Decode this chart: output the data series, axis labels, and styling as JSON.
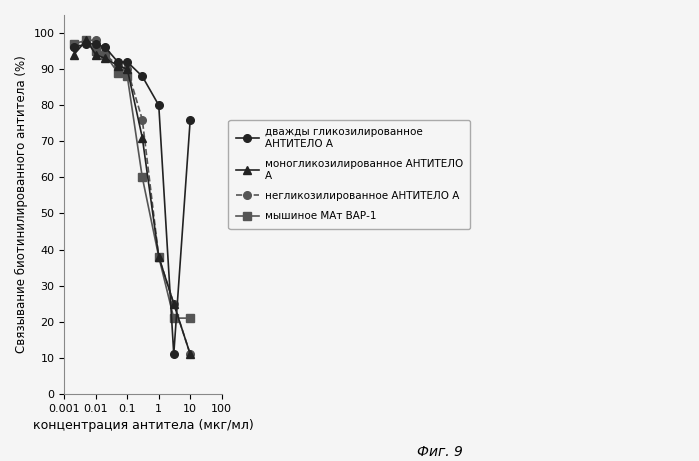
{
  "series": [
    {
      "label": "дважды гликозилированное\nАНТИТЕЛО А",
      "x": [
        0.002,
        0.005,
        0.01,
        0.02,
        0.05,
        0.1,
        0.3,
        1.0,
        3.0,
        10.0
      ],
      "y": [
        96,
        97,
        97,
        96,
        92,
        92,
        88,
        80,
        11,
        76
      ],
      "marker": "o",
      "linestyle": "-",
      "color": "#222222",
      "markersize": 5.5,
      "linewidth": 1.2,
      "zorder": 4
    },
    {
      "label": "моногликозилированное АНТИТЕЛО\nА",
      "x": [
        0.002,
        0.005,
        0.01,
        0.02,
        0.05,
        0.1,
        0.3,
        1.0,
        3.0,
        10.0
      ],
      "y": [
        94,
        98,
        94,
        93,
        91,
        90,
        71,
        38,
        25,
        11
      ],
      "marker": "^",
      "linestyle": "-",
      "color": "#222222",
      "markersize": 5.5,
      "linewidth": 1.2,
      "zorder": 3
    },
    {
      "label": "негликозилированное АНТИТЕЛО А",
      "x": [
        0.002,
        0.005,
        0.01,
        0.02,
        0.05,
        0.1,
        0.3,
        1.0,
        3.0,
        10.0
      ],
      "y": [
        96,
        98,
        98,
        94,
        91,
        90,
        76,
        38,
        25,
        11
      ],
      "marker": "o",
      "linestyle": "--",
      "color": "#555555",
      "markersize": 5.5,
      "linewidth": 1.2,
      "zorder": 2
    },
    {
      "label": "мышиное МАт ВАР-1",
      "x": [
        0.002,
        0.005,
        0.01,
        0.02,
        0.05,
        0.1,
        0.3,
        1.0,
        3.0,
        10.0
      ],
      "y": [
        97,
        98,
        95,
        94,
        89,
        88,
        60,
        38,
        21,
        21
      ],
      "marker": "s",
      "linestyle": "-",
      "color": "#555555",
      "markersize": 5.5,
      "linewidth": 1.2,
      "zorder": 2
    }
  ],
  "xlabel": "концентрация антитела (мкг/мл)",
  "ylabel": "Связывание биотинилированного антитела (%)",
  "xlim": [
    0.001,
    100
  ],
  "ylim": [
    0,
    105
  ],
  "yticks": [
    0,
    10,
    20,
    30,
    40,
    50,
    60,
    70,
    80,
    90,
    100
  ],
  "xtick_labels": [
    "0.001",
    "0.01",
    "0.1",
    "1",
    "10",
    "100"
  ],
  "xtick_vals": [
    0.001,
    0.01,
    0.1,
    1,
    10,
    100
  ],
  "fig_caption": "Фиг. 9",
  "background_color": "#f5f5f5",
  "legend_labels": [
    "дважды гликозилированное\nАНТИТЕЛО А",
    "моногликозилированное АНТИТЕЛО\nА",
    "негликозилированное АНТИТЕЛО А",
    "мышиное МАт ВАР-1"
  ]
}
